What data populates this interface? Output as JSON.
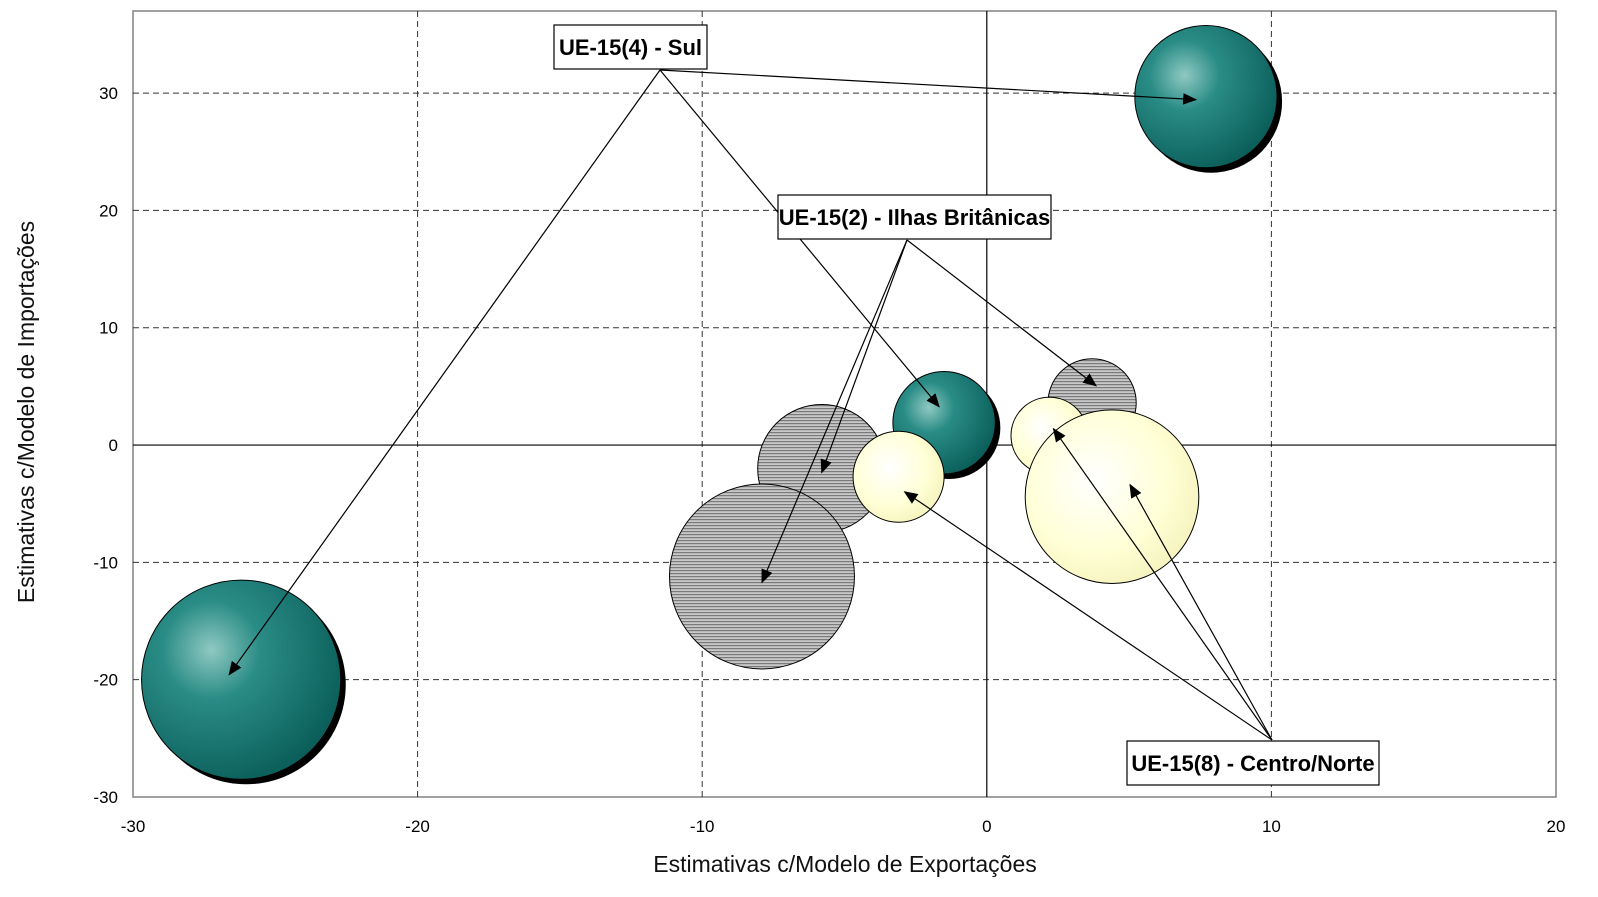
{
  "chart_data": {
    "type": "bubble",
    "xlabel": "Estimativas c/Modelo de Exportações",
    "ylabel": "Estimativas c/Modelo de Importações",
    "xlim": [
      -30,
      20
    ],
    "ylim": [
      -30,
      37
    ],
    "x_ticks": [
      "-30",
      "-20",
      "-10",
      "0",
      "10",
      "20"
    ],
    "y_ticks": [
      "30",
      "20",
      "10",
      "0",
      "-10",
      "-20",
      "-30"
    ],
    "grid": "dashed",
    "series": [
      {
        "name": "UE-15(4) - Sul",
        "style": "teal-sphere",
        "points": [
          {
            "x": 7.7,
            "y": 29.7,
            "r": 2.5
          },
          {
            "x": -1.5,
            "y": 1.9,
            "r": 1.8
          },
          {
            "x": -26.2,
            "y": -20.0,
            "r": 3.5
          }
        ]
      },
      {
        "name": "UE-15(2) - Ilhas Britânicas",
        "style": "striped-grey",
        "points": [
          {
            "x": 3.7,
            "y": 3.6,
            "r": 1.55
          },
          {
            "x": -5.8,
            "y": -2.0,
            "r": 2.25
          },
          {
            "x": -7.9,
            "y": -11.2,
            "r": 3.25
          }
        ]
      },
      {
        "name": "UE-15(8) - Centro/Norte",
        "style": "pale-yellow",
        "points": [
          {
            "x": 2.2,
            "y": 0.8,
            "r": 1.35
          },
          {
            "x": -3.1,
            "y": -2.7,
            "r": 1.6
          },
          {
            "x": 4.4,
            "y": -4.4,
            "r": 3.05
          }
        ]
      }
    ],
    "annotations": [
      {
        "text": "UE-15(4) - Sul"
      },
      {
        "text": "UE-15(2) - Ilhas Britânicas"
      },
      {
        "text": "UE-15(8) - Centro/Norte"
      }
    ],
    "colors": {
      "teal": "#0e6e6a",
      "teal_highlight": "#8fc9c2",
      "grey": "#a6a6a6",
      "yellow": "#ffffcc",
      "grid": "#333333"
    }
  }
}
